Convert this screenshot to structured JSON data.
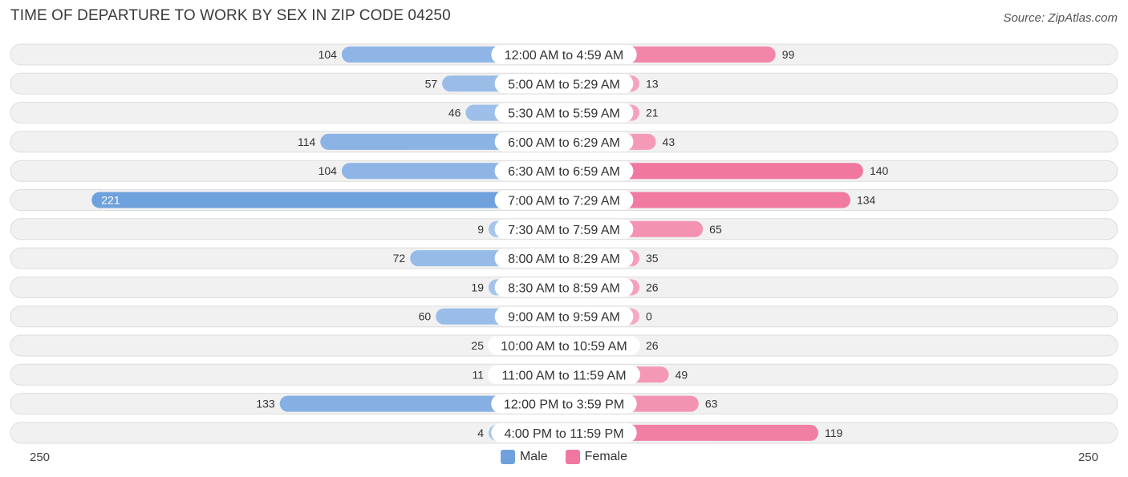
{
  "title": "TIME OF DEPARTURE TO WORK BY SEX IN ZIP CODE 04250",
  "source": "Source: ZipAtlas.com",
  "legend": {
    "male": "Male",
    "female": "Female"
  },
  "axis": {
    "left_label": "250",
    "right_label": "250"
  },
  "colors": {
    "male": "#6fa1dd",
    "male_light": "#a9c7ec",
    "female": "#f0789e",
    "female_light": "#f6a9c2",
    "row_bg": "#f1f1f1",
    "row_border": "#dddddd"
  },
  "chart_data": {
    "type": "bar",
    "orientation": "horizontal-diverging",
    "xlim": [
      -250,
      250
    ],
    "categories": [
      "12:00 AM to 4:59 AM",
      "5:00 AM to 5:29 AM",
      "5:30 AM to 5:59 AM",
      "6:00 AM to 6:29 AM",
      "6:30 AM to 6:59 AM",
      "7:00 AM to 7:29 AM",
      "7:30 AM to 7:59 AM",
      "8:00 AM to 8:29 AM",
      "8:30 AM to 8:59 AM",
      "9:00 AM to 9:59 AM",
      "10:00 AM to 10:59 AM",
      "11:00 AM to 11:59 AM",
      "12:00 PM to 3:59 PM",
      "4:00 PM to 11:59 PM"
    ],
    "series": [
      {
        "name": "Male",
        "values": [
          104,
          57,
          46,
          114,
          104,
          221,
          9,
          72,
          19,
          60,
          25,
          11,
          133,
          4
        ]
      },
      {
        "name": "Female",
        "values": [
          99,
          13,
          21,
          43,
          140,
          134,
          65,
          35,
          26,
          0,
          26,
          49,
          63,
          119
        ]
      }
    ]
  }
}
